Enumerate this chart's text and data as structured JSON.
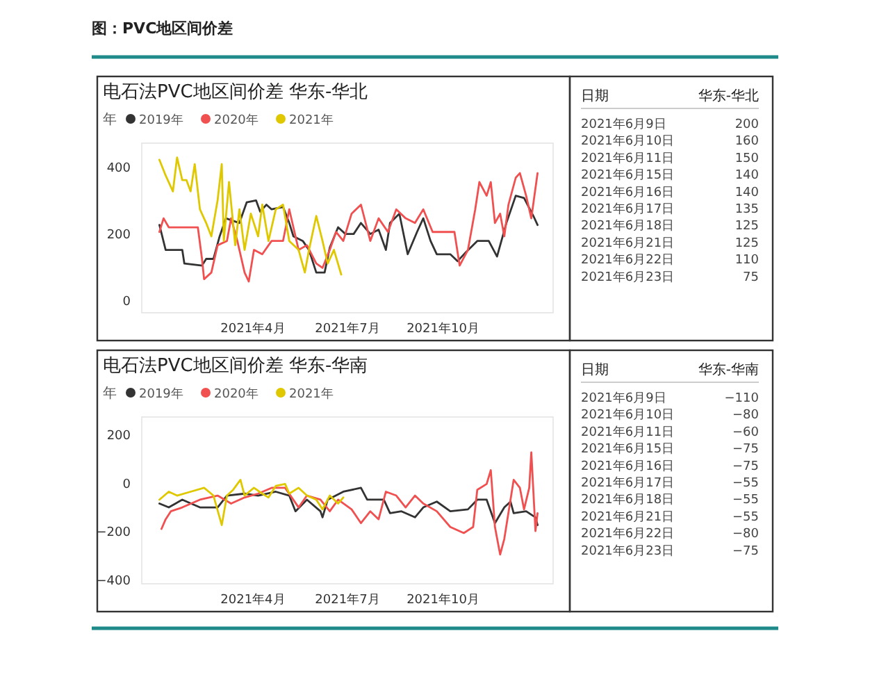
{
  "chart_data": [
    {
      "type": "line",
      "title": "电石法PVC地区间价差 华东-华北",
      "annotations": [
        "图：PVC地区间价差"
      ],
      "legend": "top left",
      "legend_title": "年",
      "marker": "none",
      "grid": false,
      "line_style": "solid",
      "xlim": [
        "2020-12-15",
        "2022-01-15"
      ],
      "xticks": [
        {
          "value": "2021-04-01",
          "label": "2021年4月"
        },
        {
          "value": "2021-07-01",
          "label": "2021年7月"
        },
        {
          "value": "2021-10-01",
          "label": "2021年10月"
        }
      ],
      "ylim": [
        -40,
        470
      ],
      "yticks": [
        0,
        200,
        400
      ],
      "series": [
        {
          "name": "2019年",
          "color": "#333333",
          "x": [
            "2021-01-01",
            "2021-01-07",
            "2021-01-23",
            "2021-01-25",
            "2021-02-11",
            "2021-02-15",
            "2021-02-22",
            "2021-02-28",
            "2021-03-06",
            "2021-03-19",
            "2021-03-26",
            "2021-04-04",
            "2021-04-08",
            "2021-04-14",
            "2021-04-19",
            "2021-04-30",
            "2021-05-06",
            "2021-05-10",
            "2021-05-19",
            "2021-05-25",
            "2021-06-01",
            "2021-06-09",
            "2021-06-14",
            "2021-06-22",
            "2021-06-29",
            "2021-07-07",
            "2021-07-14",
            "2021-07-23",
            "2021-07-31",
            "2021-08-07",
            "2021-08-11",
            "2021-08-20",
            "2021-08-28",
            "2021-09-06",
            "2021-09-12",
            "2021-09-19",
            "2021-09-25",
            "2021-10-08",
            "2021-10-15",
            "2021-10-23",
            "2021-11-03",
            "2021-11-14",
            "2021-11-22",
            "2021-12-01",
            "2021-12-10",
            "2021-12-18",
            "2021-12-27",
            "2021-12-31"
          ],
          "values": [
            224,
            149,
            149,
            108,
            102,
            122,
            122,
            190,
            244,
            230,
            292,
            298,
            264,
            285,
            271,
            278,
            230,
            190,
            176,
            149,
            81,
            81,
            156,
            217,
            197,
            197,
            230,
            197,
            210,
            149,
            230,
            258,
            136,
            203,
            244,
            176,
            136,
            136,
            115,
            142,
            176,
            176,
            129,
            230,
            312,
            305,
            251,
            224
          ]
        },
        {
          "name": "2020年",
          "color": "#f05050",
          "x": [
            "2021-01-01",
            "2021-01-05",
            "2021-01-10",
            "2021-02-07",
            "2021-02-11",
            "2021-02-13",
            "2021-02-20",
            "2021-02-26",
            "2021-03-07",
            "2021-03-11",
            "2021-03-17",
            "2021-03-24",
            "2021-03-28",
            "2021-04-02",
            "2021-04-10",
            "2021-04-19",
            "2021-04-30",
            "2021-05-06",
            "2021-05-15",
            "2021-05-23",
            "2021-06-01",
            "2021-06-07",
            "2021-06-14",
            "2021-06-20",
            "2021-06-27",
            "2021-07-05",
            "2021-07-14",
            "2021-07-23",
            "2021-07-31",
            "2021-08-09",
            "2021-08-17",
            "2021-08-26",
            "2021-09-04",
            "2021-09-12",
            "2021-09-21",
            "2021-09-30",
            "2021-10-12",
            "2021-10-17",
            "2021-10-25",
            "2021-11-01",
            "2021-11-05",
            "2021-11-12",
            "2021-11-16",
            "2021-11-20",
            "2021-11-25",
            "2021-11-29",
            "2021-12-03",
            "2021-12-10",
            "2021-12-14",
            "2021-12-20",
            "2021-12-25",
            "2021-12-31"
          ],
          "values": [
            203,
            244,
            217,
            217,
            122,
            61,
            81,
            163,
            176,
            244,
            176,
            81,
            54,
            149,
            136,
            176,
            176,
            271,
            149,
            163,
            108,
            95,
            149,
            203,
            176,
            258,
            285,
            176,
            244,
            203,
            271,
            244,
            230,
            271,
            203,
            203,
            203,
            102,
            149,
            271,
            353,
            312,
            353,
            230,
            258,
            190,
            285,
            366,
            380,
            312,
            244,
            380
          ]
        },
        {
          "name": "2021年",
          "color": "#e0c800",
          "x": [
            "2021-01-01",
            "2021-01-07",
            "2021-01-14",
            "2021-01-18",
            "2021-01-23",
            "2021-01-27",
            "2021-01-31",
            "2021-02-04",
            "2021-02-09",
            "2021-02-15",
            "2021-02-20",
            "2021-02-26",
            "2021-03-02",
            "2021-03-04",
            "2021-03-09",
            "2021-03-15",
            "2021-03-19",
            "2021-03-24",
            "2021-03-30",
            "2021-04-06",
            "2021-04-10",
            "2021-04-16",
            "2021-04-23",
            "2021-04-30",
            "2021-05-06",
            "2021-05-15",
            "2021-05-21",
            "2021-05-25",
            "2021-06-01",
            "2021-06-07",
            "2021-06-12",
            "2021-06-18",
            "2021-06-25"
          ],
          "values": [
            420,
            373,
            325,
            427,
            359,
            359,
            325,
            407,
            271,
            230,
            190,
            298,
            407,
            176,
            353,
            163,
            271,
            149,
            258,
            190,
            285,
            176,
            271,
            285,
            176,
            149,
            81,
            149,
            251,
            176,
            108,
            149,
            75
          ]
        }
      ]
    },
    {
      "type": "other",
      "xlabel": "日期",
      "categories": [
        "2021年6月9日",
        "2021年6月10日",
        "2021年6月11日",
        "2021年6月15日",
        "2021年6月16日",
        "2021年6月17日",
        "2021年6月18日",
        "2021年6月21日",
        "2021年6月22日",
        "2021年6月23日"
      ],
      "series": [
        {
          "name": "华东-华北",
          "values": [
            200,
            160,
            150,
            140,
            140,
            135,
            125,
            125,
            110,
            75
          ]
        }
      ],
      "data_labels": true
    },
    {
      "type": "line",
      "title": "电石法PVC地区间价差 华东-华南",
      "legend": "top left",
      "legend_title": "年",
      "marker": "none",
      "grid": false,
      "line_style": "solid",
      "xlim": [
        "2020-12-15",
        "2022-01-15"
      ],
      "xticks": [
        {
          "value": "2021-04-01",
          "label": "2021年4月"
        },
        {
          "value": "2021-07-01",
          "label": "2021年7月"
        },
        {
          "value": "2021-10-01",
          "label": "2021年10月"
        }
      ],
      "ylim": [
        -420,
        270
      ],
      "yticks": [
        -400,
        -200,
        0,
        200
      ],
      "series": [
        {
          "name": "2019年",
          "color": "#333333",
          "x": [
            "2021-01-01",
            "2021-01-10",
            "2021-01-23",
            "2021-02-09",
            "2021-02-26",
            "2021-03-07",
            "2021-03-24",
            "2021-04-06",
            "2021-04-23",
            "2021-05-06",
            "2021-05-12",
            "2021-05-23",
            "2021-06-05",
            "2021-06-07",
            "2021-06-12",
            "2021-06-27",
            "2021-07-14",
            "2021-07-20",
            "2021-08-05",
            "2021-08-11",
            "2021-08-22",
            "2021-09-04",
            "2021-09-12",
            "2021-09-25",
            "2021-10-08",
            "2021-10-25",
            "2021-11-03",
            "2021-11-12",
            "2021-11-20",
            "2021-11-29",
            "2021-12-05",
            "2021-12-08",
            "2021-12-20",
            "2021-12-29",
            "2021-12-31"
          ],
          "values": [
            -88,
            -104,
            -72,
            -104,
            -104,
            -55,
            -47,
            -55,
            -39,
            -55,
            -120,
            -72,
            -120,
            -145,
            -72,
            -39,
            -23,
            -72,
            -72,
            -128,
            -120,
            -145,
            -104,
            -80,
            -120,
            -112,
            -72,
            -72,
            -169,
            -104,
            -80,
            -128,
            -120,
            -145,
            -177
          ]
        },
        {
          "name": "2020年",
          "color": "#f05050",
          "x": [
            "2021-01-03",
            "2021-01-07",
            "2021-01-12",
            "2021-01-23",
            "2021-02-09",
            "2021-02-26",
            "2021-03-11",
            "2021-03-24",
            "2021-04-06",
            "2021-04-19",
            "2021-05-02",
            "2021-05-15",
            "2021-05-23",
            "2021-06-05",
            "2021-06-14",
            "2021-06-22",
            "2021-07-05",
            "2021-07-14",
            "2021-07-23",
            "2021-07-31",
            "2021-08-07",
            "2021-08-17",
            "2021-08-26",
            "2021-09-04",
            "2021-09-12",
            "2021-09-25",
            "2021-10-08",
            "2021-10-21",
            "2021-10-30",
            "2021-11-03",
            "2021-11-12",
            "2021-11-16",
            "2021-11-20",
            "2021-11-25",
            "2021-11-29",
            "2021-12-08",
            "2021-12-14",
            "2021-12-18",
            "2021-12-23",
            "2021-12-25",
            "2021-12-29",
            "2021-12-31"
          ],
          "values": [
            -193,
            -153,
            -120,
            -104,
            -72,
            -55,
            -88,
            -63,
            -47,
            -23,
            -23,
            -104,
            -55,
            -72,
            -120,
            -72,
            -112,
            -169,
            -120,
            -153,
            -39,
            -55,
            -104,
            -55,
            -88,
            -120,
            -185,
            -210,
            -185,
            -31,
            -7,
            50,
            -185,
            -299,
            -234,
            10,
            -23,
            -112,
            -23,
            124,
            -202,
            -128
          ]
        },
        {
          "name": "2021年",
          "color": "#e0c800",
          "x": [
            "2021-01-01",
            "2021-01-10",
            "2021-01-18",
            "2021-01-31",
            "2021-02-13",
            "2021-02-22",
            "2021-03-02",
            "2021-03-07",
            "2021-03-13",
            "2021-03-20",
            "2021-03-24",
            "2021-04-02",
            "2021-04-10",
            "2021-04-16",
            "2021-04-23",
            "2021-05-02",
            "2021-05-06",
            "2021-05-15",
            "2021-05-23",
            "2021-06-01",
            "2021-06-07",
            "2021-06-14",
            "2021-06-22",
            "2021-06-27"
          ],
          "values": [
            -72,
            -39,
            -55,
            -39,
            -23,
            -55,
            -177,
            -55,
            -31,
            10,
            -55,
            -23,
            -47,
            -63,
            -15,
            -7,
            -47,
            -23,
            -55,
            -72,
            -112,
            -55,
            -88,
            -63
          ]
        }
      ]
    },
    {
      "type": "other",
      "xlabel": "日期",
      "categories": [
        "2021年6月9日",
        "2021年6月10日",
        "2021年6月11日",
        "2021年6月15日",
        "2021年6月16日",
        "2021年6月17日",
        "2021年6月18日",
        "2021年6月21日",
        "2021年6月22日",
        "2021年6月23日"
      ],
      "series": [
        {
          "name": "华东-华南",
          "values": [
            -110,
            -80,
            -60,
            -75,
            -75,
            -55,
            -55,
            -55,
            -80,
            -75
          ]
        }
      ],
      "data_labels": true
    }
  ]
}
